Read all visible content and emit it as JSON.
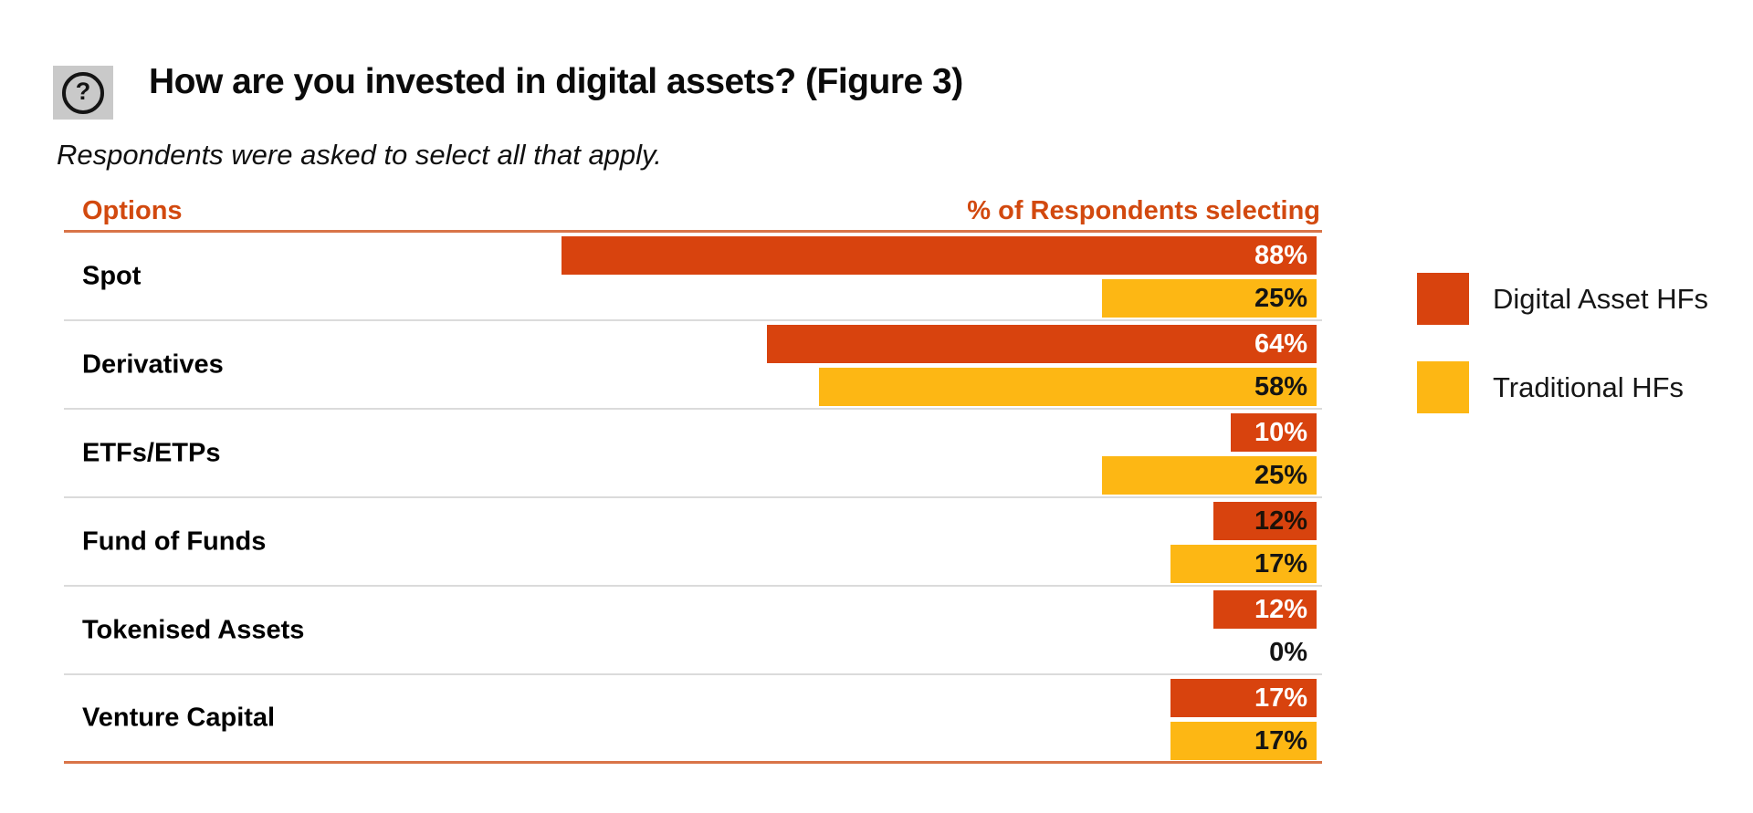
{
  "header": {
    "icon_glyph": "?",
    "title": "How are you invested in digital assets? (Figure 3)",
    "subtitle": "Respondents were asked to select all that apply."
  },
  "table": {
    "col_left": "Options",
    "col_right": "% of Respondents selecting"
  },
  "colors": {
    "digital": "#d8430e",
    "traditional": "#fdb714",
    "header_text": "#d2490f",
    "accent_line": "#d97448",
    "separator": "#dbdbdb"
  },
  "legend": [
    {
      "label": "Digital Asset HFs",
      "color": "#d8430e"
    },
    {
      "label": "Traditional HFs",
      "color": "#fdb714"
    }
  ],
  "chart_data": {
    "type": "bar",
    "orientation": "horizontal",
    "title": "How are you invested in digital assets? (Figure 3)",
    "note": "Respondents were asked to select all that apply.",
    "unit": "%",
    "xlim": [
      0,
      100
    ],
    "grid": false,
    "legend_position": "right",
    "categories": [
      "Spot",
      "Derivatives",
      "ETFs/ETPs",
      "Fund of Funds",
      "Tokenised Assets",
      "Venture Capital"
    ],
    "series": [
      {
        "name": "Digital Asset HFs",
        "color": "#d8430e",
        "values": [
          88,
          64,
          10,
          12,
          12,
          17
        ]
      },
      {
        "name": "Traditional HFs",
        "color": "#fdb714",
        "values": [
          25,
          58,
          25,
          17,
          0,
          17
        ]
      }
    ],
    "rows": [
      {
        "label": "Spot",
        "digital": {
          "value": 88,
          "text": "88%",
          "text_color": "#ffffff"
        },
        "traditional": {
          "value": 25,
          "text": "25%",
          "text_color": "#141414"
        }
      },
      {
        "label": "Derivatives",
        "digital": {
          "value": 64,
          "text": "64%",
          "text_color": "#ffffff"
        },
        "traditional": {
          "value": 58,
          "text": "58%",
          "text_color": "#141414"
        }
      },
      {
        "label": "ETFs/ETPs",
        "digital": {
          "value": 10,
          "text": "10%",
          "text_color": "#ffffff"
        },
        "traditional": {
          "value": 25,
          "text": "25%",
          "text_color": "#141414"
        }
      },
      {
        "label": "Fund of Funds",
        "digital": {
          "value": 12,
          "text": "12%",
          "text_color": "#1c1208"
        },
        "traditional": {
          "value": 17,
          "text": "17%",
          "text_color": "#141414"
        }
      },
      {
        "label": "Tokenised Assets",
        "digital": {
          "value": 12,
          "text": "12%",
          "text_color": "#ffffff"
        },
        "traditional": {
          "value": 0,
          "text": "0%",
          "text_color": "#141414"
        }
      },
      {
        "label": "Venture Capital",
        "digital": {
          "value": 17,
          "text": "17%",
          "text_color": "#ffffff"
        },
        "traditional": {
          "value": 17,
          "text": "17%",
          "text_color": "#141414"
        }
      }
    ]
  }
}
